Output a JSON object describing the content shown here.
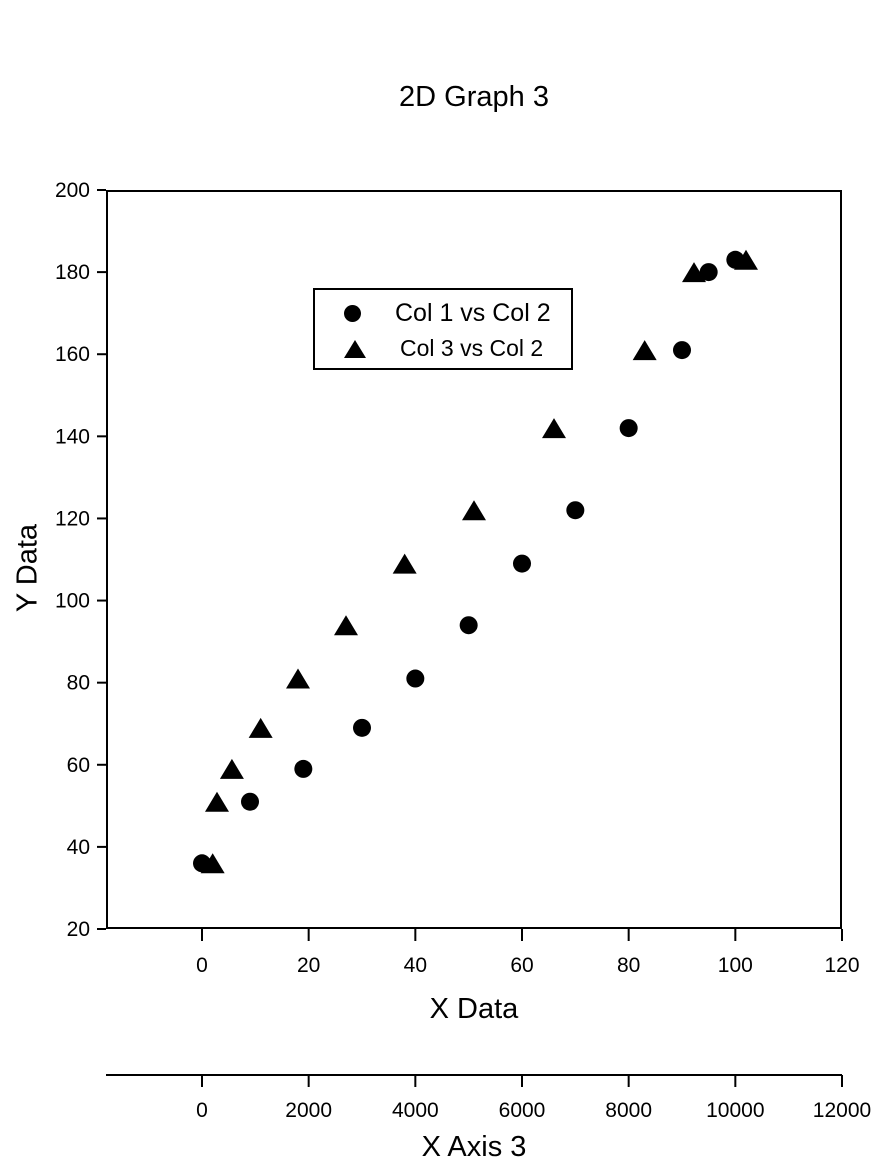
{
  "chart_data": {
    "type": "scatter",
    "title": "2D Graph 3",
    "background_color": "#ffffff",
    "foreground_color": "#000000",
    "grid": false,
    "axes": {
      "x1": {
        "label": "X Data",
        "min": 0,
        "max": 120,
        "ticks": [
          0,
          20,
          40,
          60,
          80,
          100,
          120
        ],
        "position": "bottom"
      },
      "y": {
        "label": "Y Data",
        "min": 20,
        "max": 200,
        "ticks": [
          20,
          40,
          60,
          80,
          100,
          120,
          140,
          160,
          180,
          200
        ],
        "position": "left"
      },
      "x2": {
        "label": "X Axis 3",
        "min": 0,
        "max": 12000,
        "ticks": [
          0,
          2000,
          4000,
          6000,
          8000,
          10000,
          12000
        ],
        "position": "detached-bottom"
      }
    },
    "legend": {
      "position": "inside-top-left",
      "border": true,
      "items": [
        {
          "marker": "filled-circle",
          "label": "Col 1 vs Col 2"
        },
        {
          "marker": "filled-triangle",
          "label": "Col 3 vs Col 2"
        }
      ]
    },
    "series": [
      {
        "name": "Col 1 vs Col 2",
        "marker": "circle",
        "color": "#000000",
        "x_axis": "x1",
        "x": [
          0,
          9,
          19,
          30,
          40,
          50,
          60,
          70,
          80,
          90,
          95,
          100
        ],
        "y": [
          36,
          51,
          59,
          69,
          81,
          94,
          109,
          122,
          142,
          161,
          180,
          183
        ]
      },
      {
        "name": "Col 3 vs Col 2",
        "marker": "triangle",
        "color": "#000000",
        "x_axis": "x2",
        "x": [
          200,
          281,
          561,
          1100,
          1800,
          2700,
          3800,
          5100,
          6600,
          8300,
          9225,
          10200
        ],
        "y": [
          36,
          51,
          59,
          69,
          81,
          94,
          109,
          122,
          142,
          161,
          180,
          183
        ]
      }
    ]
  }
}
